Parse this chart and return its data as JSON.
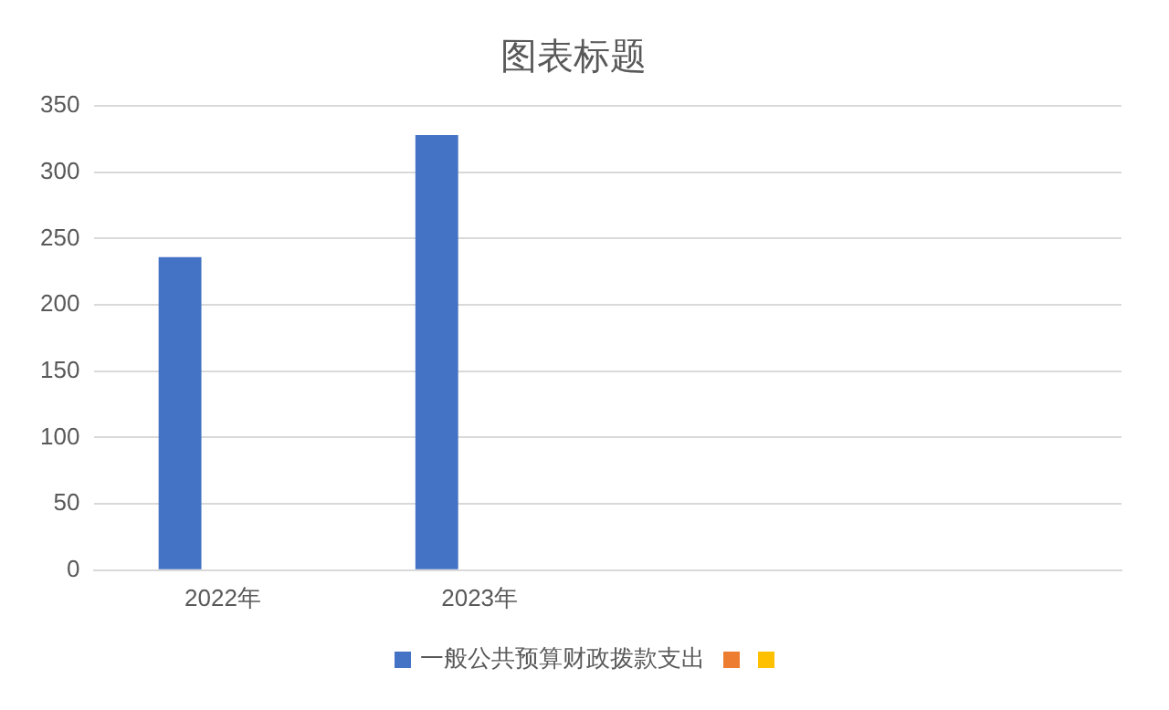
{
  "chart_data": {
    "type": "bar",
    "title": "图表标题",
    "categories": [
      "2022年",
      "2023年",
      null,
      null
    ],
    "series": [
      {
        "name": "一般公共预算财政拨款支出",
        "color": "#4472c4",
        "values": [
          236,
          328,
          null,
          null
        ]
      },
      {
        "color": "#ed7d31",
        "values": [
          null,
          null,
          null,
          null
        ]
      },
      {
        "color": "#ffc000",
        "values": [
          null,
          null,
          null,
          null
        ]
      }
    ],
    "ylim": [
      0,
      350
    ],
    "yticks": [
      0,
      50,
      100,
      150,
      200,
      250,
      300,
      350
    ],
    "grid": "y",
    "legend": "bottom"
  }
}
